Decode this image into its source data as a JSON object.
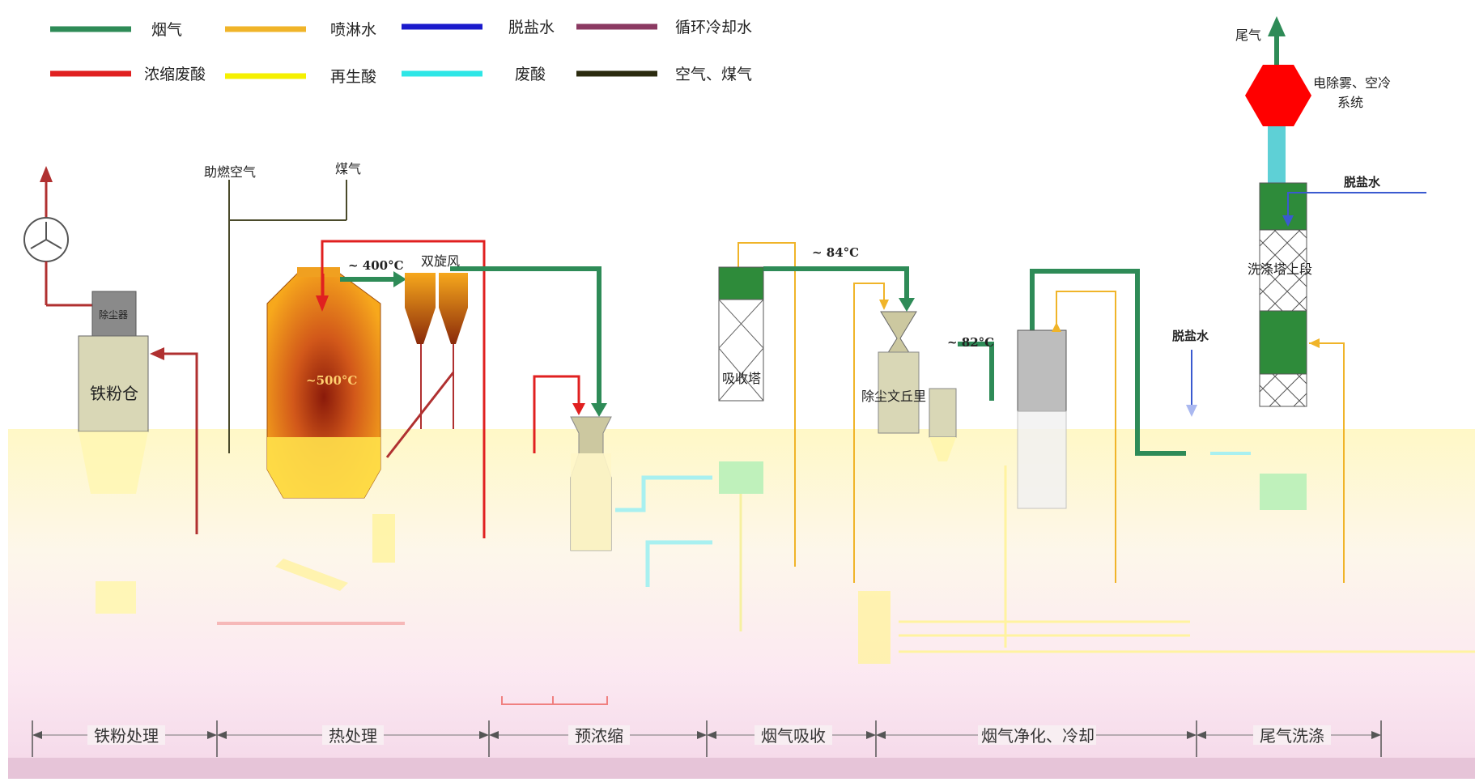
{
  "legend": [
    {
      "label": "烟气",
      "color": "#2e8b57"
    },
    {
      "label": "喷淋水",
      "color": "#f0b429"
    },
    {
      "label": "脱盐水",
      "color": "#1a1acc"
    },
    {
      "label": "循环冷却水",
      "color": "#8b3a62"
    },
    {
      "label": "浓缩废酸",
      "color": "#e02020"
    },
    {
      "label": "再生酸",
      "color": "#f5f000"
    },
    {
      "label": "废酸",
      "color": "#2ee6e6"
    },
    {
      "label": "空气、煤气",
      "color": "#2b2b0f"
    }
  ],
  "labels": {
    "exhaust_gas": "尾气",
    "demister": "电除雾、空冷系统",
    "demister_l1": "电除雾、空冷",
    "demister_l2": "系统",
    "desalted_water_1": "脱盐水",
    "desalted_water_2": "脱盐水",
    "wash_tower_upper": "洗涤塔上段",
    "combustion_air": "助燃空气",
    "fuel_gas": "煤气",
    "temp_400": "~ 400°C",
    "double_cyclone": "双旋风",
    "temp_500": "~500°C",
    "temp_84": "~ 84°C",
    "temp_82": "~ 82°C",
    "absorption_tower": "吸收塔",
    "venturi": "除尘文丘里",
    "dust_collector": "除尘器",
    "iron_powder_bin": "铁粉仓"
  },
  "sections": [
    "铁粉处理",
    "热处理",
    "预浓缩",
    "烟气吸收",
    "烟气净化、冷却",
    "尾气洗涤"
  ]
}
